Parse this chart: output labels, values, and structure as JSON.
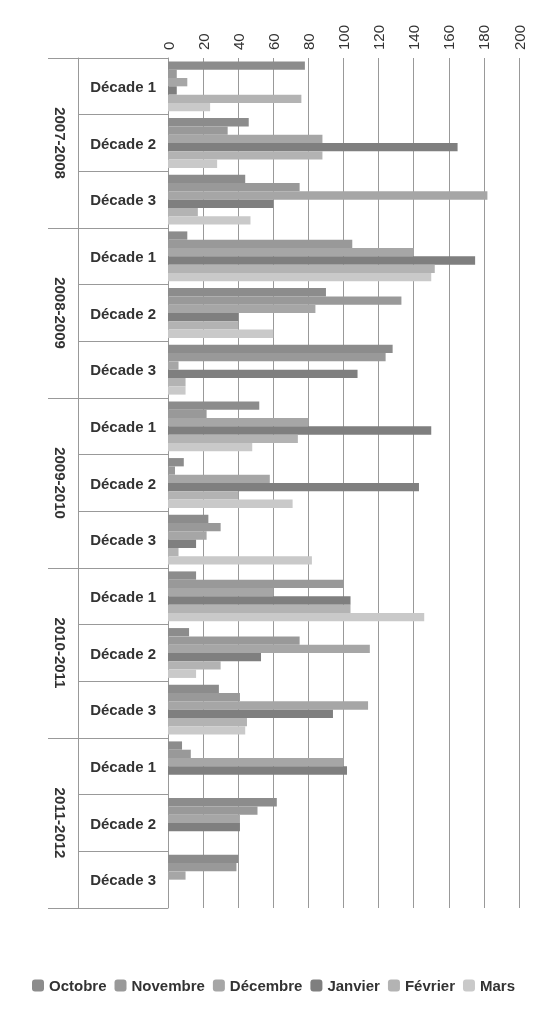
{
  "chart_data": {
    "type": "bar",
    "orientation": "horizontal",
    "categories": [
      "Décade 1",
      "Décade 2",
      "Décade 3",
      "Décade 1",
      "Décade 2",
      "Décade 3",
      "Décade 1",
      "Décade 2",
      "Décade 3",
      "Décade 1",
      "Décade 2",
      "Décade 3",
      "Décade 1",
      "Décade 2",
      "Décade 3"
    ],
    "annotations": [
      "2007-2008",
      "2008-2009",
      "2009-2010",
      "2010-2011",
      "2011-2012"
    ],
    "series": [
      {
        "name": "Octobre",
        "color": "#8c8c8c",
        "values": [
          78,
          46,
          44,
          11,
          90,
          128,
          52,
          9,
          23,
          16,
          12,
          29,
          8,
          62,
          40
        ]
      },
      {
        "name": "Novembre",
        "color": "#999999",
        "values": [
          5,
          34,
          75,
          105,
          133,
          124,
          22,
          4,
          30,
          100,
          75,
          41,
          13,
          51,
          39
        ]
      },
      {
        "name": "Décembre",
        "color": "#a6a6a6",
        "values": [
          11,
          88,
          182,
          140,
          84,
          6,
          80,
          58,
          22,
          60,
          115,
          114,
          100,
          41,
          10
        ]
      },
      {
        "name": "Janvier",
        "color": "#7f7f7f",
        "values": [
          5,
          165,
          60,
          175,
          40,
          108,
          150,
          143,
          16,
          104,
          53,
          94,
          102,
          41,
          null
        ]
      },
      {
        "name": "Février",
        "color": "#b3b3b3",
        "values": [
          76,
          88,
          17,
          152,
          40,
          10,
          74,
          40,
          6,
          104,
          30,
          45,
          null,
          null,
          null
        ]
      },
      {
        "name": "Mars",
        "color": "#c9c9c9",
        "values": [
          24,
          28,
          47,
          150,
          60,
          10,
          48,
          71,
          82,
          146,
          16,
          44,
          null,
          null,
          null
        ]
      }
    ],
    "xlim": [
      0,
      200
    ],
    "xticks": [
      0,
      20,
      40,
      60,
      80,
      100,
      120,
      140,
      160,
      180,
      200
    ],
    "grid": "x",
    "legend": "bottom"
  }
}
